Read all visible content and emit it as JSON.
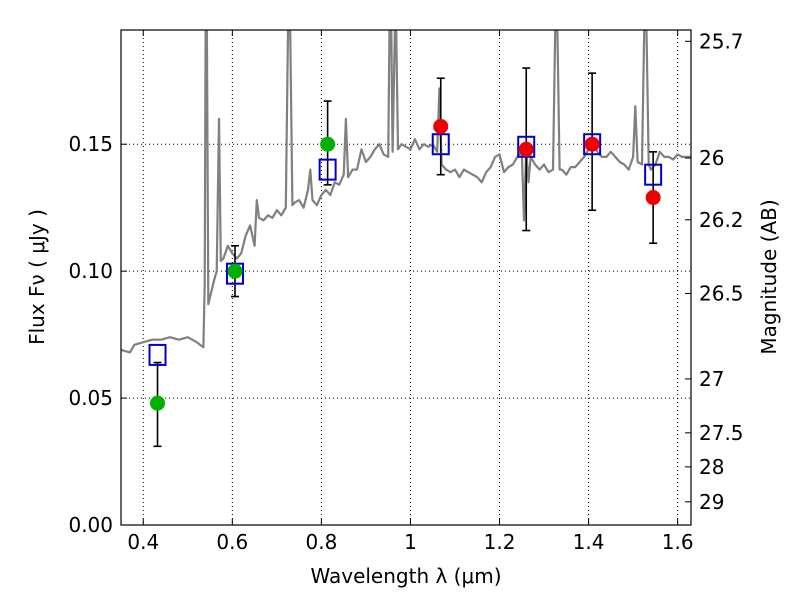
{
  "chart_data": {
    "type": "scatter",
    "xlabel": "Wavelength  λ (μm)",
    "ylabel": "Flux  Fν  ( μJy )",
    "ylabel_right": "Magnitude (AB)",
    "xlim": [
      0.35,
      1.63
    ],
    "ylim": [
      0.0,
      0.195
    ],
    "grid": true,
    "x_ticks": [
      {
        "value": 0.4,
        "label": "0.4"
      },
      {
        "value": 0.6,
        "label": "0.6"
      },
      {
        "value": 0.8,
        "label": "0.8"
      },
      {
        "value": 1.0,
        "label": "1"
      },
      {
        "value": 1.2,
        "label": "1.2"
      },
      {
        "value": 1.4,
        "label": "1.4"
      },
      {
        "value": 1.6,
        "label": "1.6"
      }
    ],
    "y_ticks": [
      {
        "value": 0.0,
        "label": "0.00"
      },
      {
        "value": 0.05,
        "label": "0.05"
      },
      {
        "value": 0.1,
        "label": "0.10"
      },
      {
        "value": 0.15,
        "label": "0.15"
      }
    ],
    "right_ticks": [
      {
        "mag": 25.7,
        "label": "25.7"
      },
      {
        "mag": 26.0,
        "label": "26"
      },
      {
        "mag": 26.2,
        "label": "26.2"
      },
      {
        "mag": 26.5,
        "label": "26.5"
      },
      {
        "mag": 27.0,
        "label": "27"
      },
      {
        "mag": 27.5,
        "label": "27.5"
      },
      {
        "mag": 28.0,
        "label": "28"
      },
      {
        "mag": 29.0,
        "label": "29"
      }
    ],
    "model_spectrum": {
      "color": "#808080",
      "points": [
        [
          0.35,
          0.069
        ],
        [
          0.37,
          0.068
        ],
        [
          0.38,
          0.071
        ],
        [
          0.4,
          0.072
        ],
        [
          0.42,
          0.073
        ],
        [
          0.44,
          0.073
        ],
        [
          0.46,
          0.074
        ],
        [
          0.48,
          0.073
        ],
        [
          0.5,
          0.074
        ],
        [
          0.52,
          0.072
        ],
        [
          0.535,
          0.07
        ],
        [
          0.538,
          0.095
        ],
        [
          0.54,
          0.195
        ],
        [
          0.543,
          0.195
        ],
        [
          0.546,
          0.087
        ],
        [
          0.55,
          0.09
        ],
        [
          0.56,
          0.097
        ],
        [
          0.565,
          0.1
        ],
        [
          0.57,
          0.16
        ],
        [
          0.574,
          0.104
        ],
        [
          0.58,
          0.105
        ],
        [
          0.59,
          0.11
        ],
        [
          0.6,
          0.107
        ],
        [
          0.61,
          0.105
        ],
        [
          0.62,
          0.107
        ],
        [
          0.63,
          0.114
        ],
        [
          0.64,
          0.118
        ],
        [
          0.65,
          0.11
        ],
        [
          0.655,
          0.128
        ],
        [
          0.66,
          0.121
        ],
        [
          0.67,
          0.12
        ],
        [
          0.68,
          0.122
        ],
        [
          0.69,
          0.121
        ],
        [
          0.7,
          0.124
        ],
        [
          0.71,
          0.122
        ],
        [
          0.72,
          0.125
        ],
        [
          0.725,
          0.195
        ],
        [
          0.73,
          0.195
        ],
        [
          0.735,
          0.126
        ],
        [
          0.74,
          0.127
        ],
        [
          0.75,
          0.128
        ],
        [
          0.76,
          0.125
        ],
        [
          0.77,
          0.132
        ],
        [
          0.775,
          0.14
        ],
        [
          0.78,
          0.128
        ],
        [
          0.79,
          0.126
        ],
        [
          0.8,
          0.13
        ],
        [
          0.81,
          0.132
        ],
        [
          0.82,
          0.13
        ],
        [
          0.83,
          0.135
        ],
        [
          0.84,
          0.134
        ],
        [
          0.85,
          0.138
        ],
        [
          0.855,
          0.16
        ],
        [
          0.86,
          0.137
        ],
        [
          0.87,
          0.14
        ],
        [
          0.88,
          0.14
        ],
        [
          0.89,
          0.148
        ],
        [
          0.9,
          0.143
        ],
        [
          0.91,
          0.145
        ],
        [
          0.92,
          0.148
        ],
        [
          0.93,
          0.15
        ],
        [
          0.94,
          0.146
        ],
        [
          0.95,
          0.145
        ],
        [
          0.953,
          0.195
        ],
        [
          0.957,
          0.195
        ],
        [
          0.96,
          0.147
        ],
        [
          0.965,
          0.195
        ],
        [
          0.968,
          0.195
        ],
        [
          0.972,
          0.148
        ],
        [
          0.98,
          0.15
        ],
        [
          0.99,
          0.149
        ],
        [
          1.0,
          0.148
        ],
        [
          1.01,
          0.152
        ],
        [
          1.02,
          0.148
        ],
        [
          1.03,
          0.15
        ],
        [
          1.04,
          0.149
        ],
        [
          1.05,
          0.15
        ],
        [
          1.06,
          0.147
        ],
        [
          1.065,
          0.172
        ],
        [
          1.07,
          0.142
        ],
        [
          1.08,
          0.14
        ],
        [
          1.09,
          0.139
        ],
        [
          1.1,
          0.14
        ],
        [
          1.11,
          0.137
        ],
        [
          1.12,
          0.14
        ],
        [
          1.13,
          0.139
        ],
        [
          1.14,
          0.138
        ],
        [
          1.15,
          0.137
        ],
        [
          1.16,
          0.135
        ],
        [
          1.17,
          0.139
        ],
        [
          1.18,
          0.141
        ],
        [
          1.19,
          0.145
        ],
        [
          1.2,
          0.146
        ],
        [
          1.21,
          0.139
        ],
        [
          1.22,
          0.141
        ],
        [
          1.23,
          0.142
        ],
        [
          1.24,
          0.145
        ],
        [
          1.25,
          0.147
        ],
        [
          1.255,
          0.12
        ],
        [
          1.26,
          0.148
        ],
        [
          1.265,
          0.135
        ],
        [
          1.27,
          0.145
        ],
        [
          1.28,
          0.142
        ],
        [
          1.29,
          0.14
        ],
        [
          1.3,
          0.142
        ],
        [
          1.31,
          0.139
        ],
        [
          1.32,
          0.14
        ],
        [
          1.325,
          0.195
        ],
        [
          1.33,
          0.195
        ],
        [
          1.335,
          0.14
        ],
        [
          1.34,
          0.14
        ],
        [
          1.35,
          0.138
        ],
        [
          1.36,
          0.141
        ],
        [
          1.37,
          0.141
        ],
        [
          1.38,
          0.143
        ],
        [
          1.39,
          0.145
        ],
        [
          1.4,
          0.148
        ],
        [
          1.41,
          0.15
        ],
        [
          1.42,
          0.147
        ],
        [
          1.43,
          0.145
        ],
        [
          1.44,
          0.145
        ],
        [
          1.45,
          0.147
        ],
        [
          1.46,
          0.145
        ],
        [
          1.47,
          0.143
        ],
        [
          1.48,
          0.142
        ],
        [
          1.49,
          0.14
        ],
        [
          1.5,
          0.145
        ],
        [
          1.505,
          0.165
        ],
        [
          1.51,
          0.143
        ],
        [
          1.52,
          0.142
        ],
        [
          1.525,
          0.195
        ],
        [
          1.53,
          0.195
        ],
        [
          1.535,
          0.142
        ],
        [
          1.54,
          0.14
        ],
        [
          1.55,
          0.142
        ],
        [
          1.56,
          0.147
        ],
        [
          1.57,
          0.145
        ],
        [
          1.58,
          0.145
        ],
        [
          1.59,
          0.144
        ],
        [
          1.6,
          0.146
        ],
        [
          1.61,
          0.145
        ],
        [
          1.63,
          0.145
        ]
      ]
    },
    "model_photometry": {
      "color": "#0000cc",
      "points": [
        [
          0.432,
          0.067
        ],
        [
          0.606,
          0.099
        ],
        [
          0.814,
          0.14
        ],
        [
          1.068,
          0.15
        ],
        [
          1.26,
          0.149
        ],
        [
          1.408,
          0.15
        ],
        [
          1.545,
          0.138
        ]
      ]
    },
    "observed_photometry": [
      {
        "x": 0.432,
        "y": 0.048,
        "err_low": 0.031,
        "err_high": 0.064,
        "color": "#00b000"
      },
      {
        "x": 0.606,
        "y": 0.1,
        "err_low": 0.09,
        "err_high": 0.11,
        "color": "#00b000"
      },
      {
        "x": 0.814,
        "y": 0.15,
        "err_low": 0.134,
        "err_high": 0.167,
        "color": "#00b000"
      },
      {
        "x": 1.068,
        "y": 0.157,
        "err_low": 0.138,
        "err_high": 0.176,
        "color": "#ee0000"
      },
      {
        "x": 1.26,
        "y": 0.148,
        "err_low": 0.116,
        "err_high": 0.18,
        "color": "#ee0000"
      },
      {
        "x": 1.408,
        "y": 0.15,
        "err_low": 0.124,
        "err_high": 0.178,
        "color": "#ee0000"
      },
      {
        "x": 1.545,
        "y": 0.129,
        "err_low": 0.111,
        "err_high": 0.147,
        "color": "#ee0000"
      }
    ]
  }
}
